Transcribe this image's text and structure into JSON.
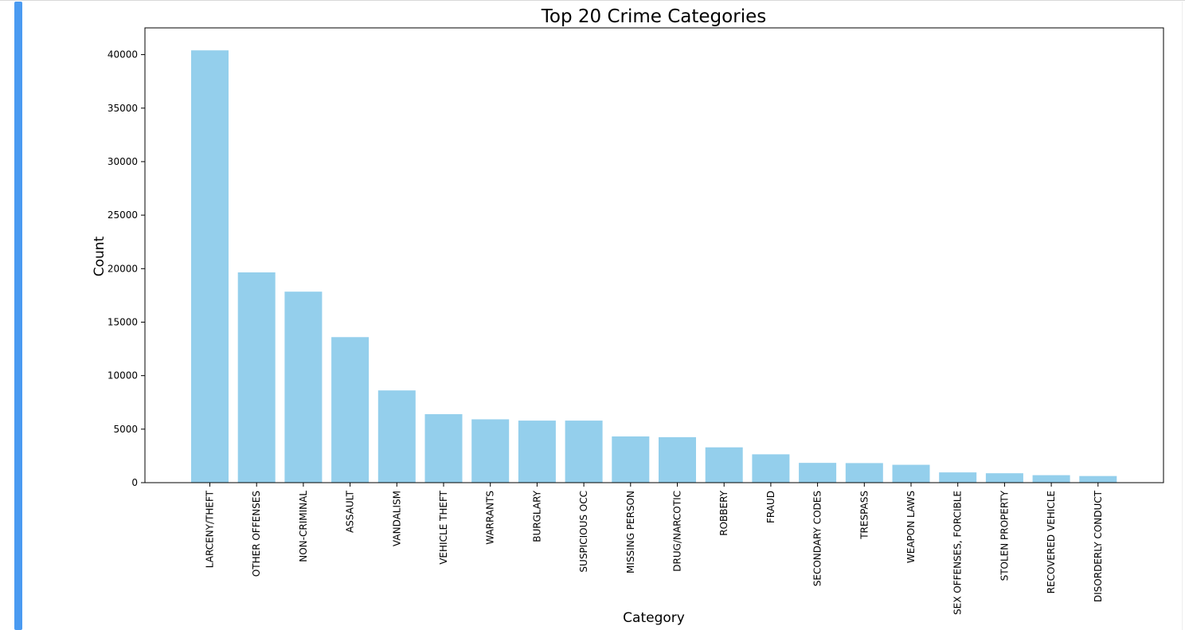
{
  "chart_data": {
    "type": "bar",
    "title": "Top 20 Crime Categories",
    "xlabel": "Category",
    "ylabel": "Count",
    "ylim": [
      0,
      42500
    ],
    "yticks": [
      0,
      5000,
      10000,
      15000,
      20000,
      25000,
      30000,
      35000,
      40000
    ],
    "grid": false,
    "bar_color": "#94cfec",
    "categories": [
      "LARCENY/THEFT",
      "OTHER OFFENSES",
      "NON-CRIMINAL",
      "ASSAULT",
      "VANDALISM",
      "VEHICLE THEFT",
      "WARRANTS",
      "BURGLARY",
      "SUSPICIOUS OCC",
      "MISSING PERSON",
      "DRUG/NARCOTIC",
      "ROBBERY",
      "FRAUD",
      "SECONDARY CODES",
      "TRESPASS",
      "WEAPON LAWS",
      "SEX OFFENSES, FORCIBLE",
      "STOLEN PROPERTY",
      "RECOVERED VEHICLE",
      "DISORDERLY CONDUCT"
    ],
    "values": [
      40400,
      19650,
      17850,
      13600,
      8620,
      6400,
      5920,
      5800,
      5800,
      4320,
      4250,
      3300,
      2650,
      1850,
      1830,
      1670,
      960,
      880,
      700,
      620
    ]
  }
}
